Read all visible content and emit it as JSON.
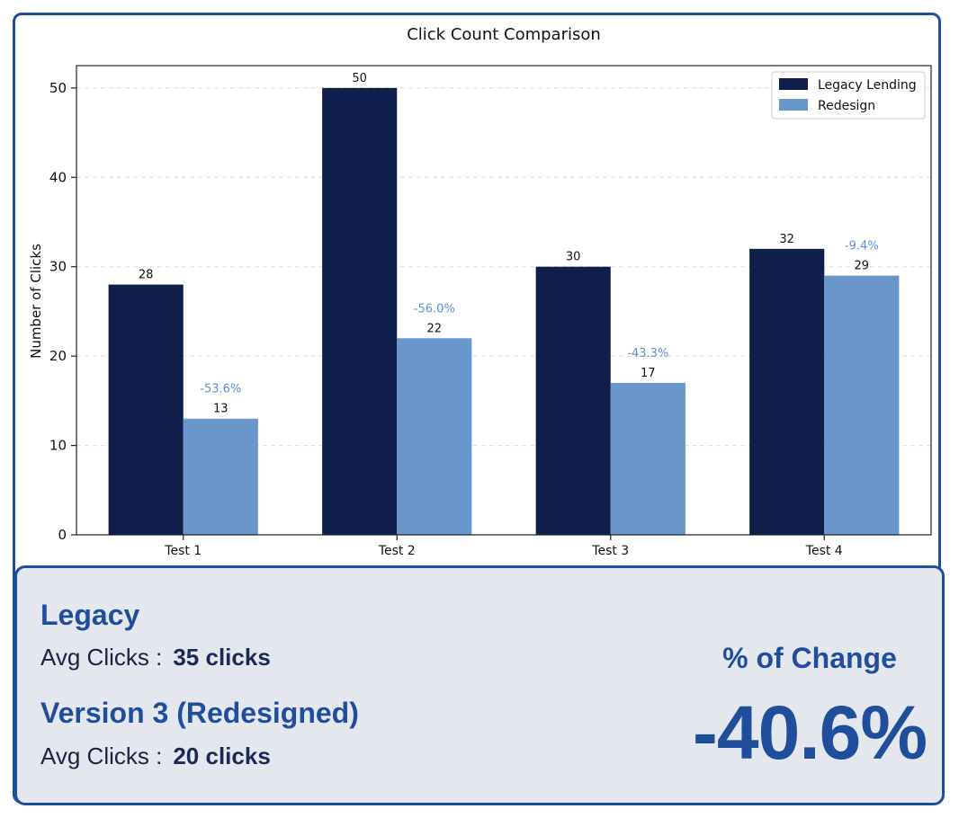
{
  "chart_data": {
    "type": "bar",
    "title": "Click Count Comparison",
    "ylabel": "Number of Clicks",
    "xlabel": "",
    "categories": [
      "Test 1",
      "Test 2",
      "Test 3",
      "Test 4"
    ],
    "ylim": [
      0,
      52.5
    ],
    "yticks": [
      0,
      10,
      20,
      30,
      40,
      50
    ],
    "grid": true,
    "legend_position": "top-right",
    "series": [
      {
        "name": "Legacy Lending",
        "color": "#101e4b",
        "values": [
          28,
          50,
          30,
          32
        ]
      },
      {
        "name": "Redesign",
        "color": "#6897cb",
        "values": [
          13,
          22,
          17,
          29
        ]
      }
    ],
    "annotations": [
      "-53.6%",
      "-56.0%",
      "-43.3%",
      "-9.4%"
    ],
    "annotation_color": "#5b8fd0"
  },
  "summary": {
    "legacy_title": "Legacy",
    "legacy_avg_label": "Avg Clicks :",
    "legacy_avg_value": "35 clicks",
    "redesign_title": "Version 3 (Redesigned)",
    "redesign_avg_label": "Avg Clicks :",
    "redesign_avg_value": "20 clicks",
    "change_label": "% of Change",
    "change_value": "-40.6%"
  }
}
